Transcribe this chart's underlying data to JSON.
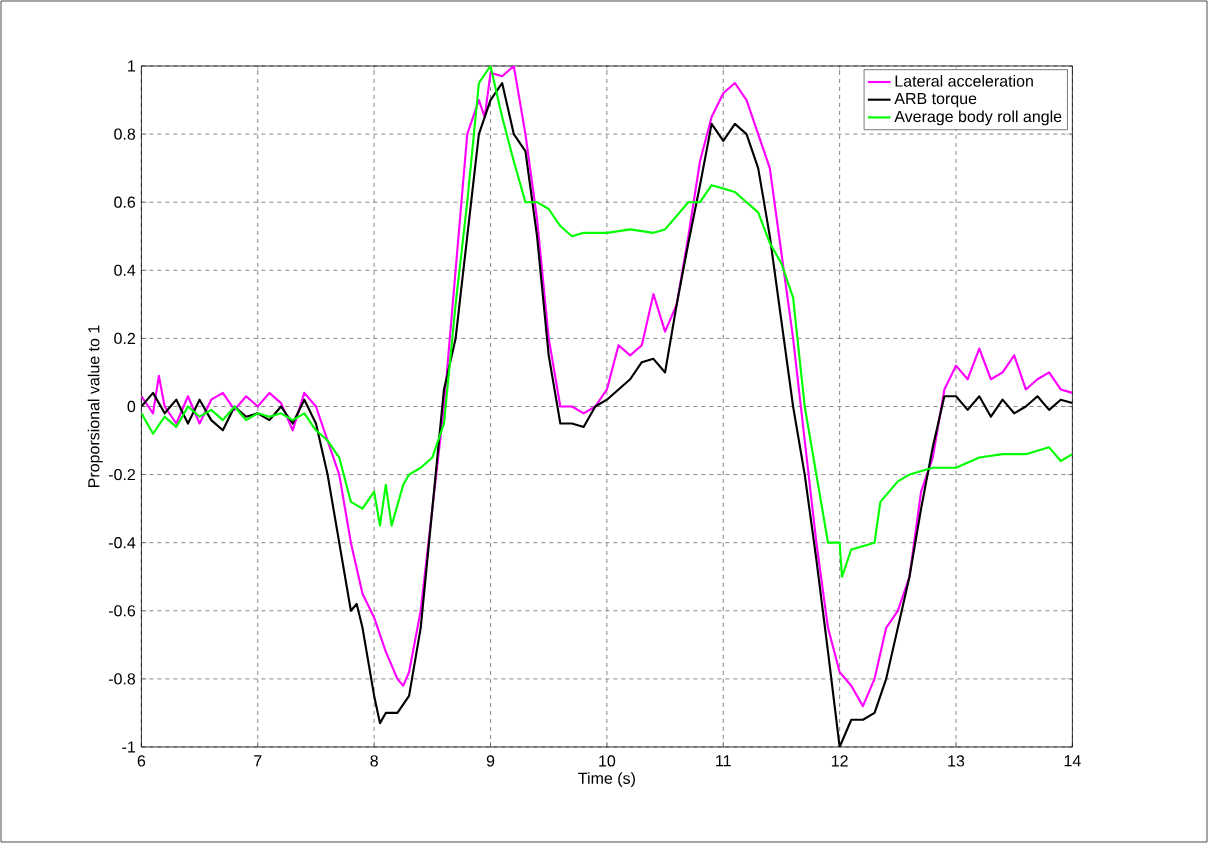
{
  "chart_data": {
    "type": "line",
    "xlabel": "Time (s)",
    "ylabel": "Proporsional value to 1",
    "xlim": [
      6,
      14
    ],
    "ylim": [
      -1,
      1
    ],
    "xticks": [
      6,
      7,
      8,
      9,
      10,
      11,
      12,
      13,
      14
    ],
    "yticks": [
      -1,
      -0.8,
      -0.6,
      -0.4,
      -0.2,
      0,
      0.2,
      0.4,
      0.6,
      0.8,
      1
    ],
    "grid": true,
    "legend": "top right",
    "line_style": "solid",
    "marker": "none",
    "series": [
      {
        "name": "Lateral acceleration",
        "color": "#ff00ff",
        "x": [
          6.0,
          6.1,
          6.15,
          6.2,
          6.3,
          6.4,
          6.5,
          6.6,
          6.7,
          6.8,
          6.9,
          7.0,
          7.1,
          7.2,
          7.3,
          7.4,
          7.5,
          7.6,
          7.7,
          7.8,
          7.9,
          8.0,
          8.1,
          8.2,
          8.25,
          8.3,
          8.4,
          8.5,
          8.6,
          8.7,
          8.8,
          8.9,
          8.95,
          9.0,
          9.1,
          9.2,
          9.3,
          9.4,
          9.5,
          9.6,
          9.7,
          9.8,
          9.9,
          10.0,
          10.1,
          10.2,
          10.3,
          10.4,
          10.5,
          10.6,
          10.7,
          10.8,
          10.9,
          11.0,
          11.1,
          11.2,
          11.3,
          11.4,
          11.5,
          11.6,
          11.7,
          11.8,
          11.9,
          12.0,
          12.1,
          12.2,
          12.3,
          12.4,
          12.5,
          12.6,
          12.7,
          12.8,
          12.9,
          13.0,
          13.1,
          13.2,
          13.3,
          13.4,
          13.5,
          13.6,
          13.7,
          13.8,
          13.9,
          14.0
        ],
        "values": [
          0.03,
          -0.02,
          0.09,
          0.0,
          -0.05,
          0.03,
          -0.05,
          0.02,
          0.04,
          -0.01,
          0.03,
          0.0,
          0.04,
          0.01,
          -0.07,
          0.04,
          0.0,
          -0.1,
          -0.2,
          -0.4,
          -0.55,
          -0.62,
          -0.72,
          -0.8,
          -0.82,
          -0.78,
          -0.6,
          -0.3,
          0.0,
          0.4,
          0.8,
          0.9,
          0.85,
          0.98,
          0.97,
          1.0,
          0.8,
          0.55,
          0.2,
          0.0,
          0.0,
          -0.02,
          0.0,
          0.05,
          0.18,
          0.15,
          0.18,
          0.33,
          0.22,
          0.3,
          0.5,
          0.72,
          0.85,
          0.92,
          0.95,
          0.9,
          0.8,
          0.7,
          0.45,
          0.2,
          -0.1,
          -0.4,
          -0.65,
          -0.78,
          -0.82,
          -0.88,
          -0.8,
          -0.65,
          -0.6,
          -0.5,
          -0.25,
          -0.15,
          0.05,
          0.12,
          0.08,
          0.17,
          0.08,
          0.1,
          0.15,
          0.05,
          0.08,
          0.1,
          0.05,
          0.04
        ]
      },
      {
        "name": "ARB torque",
        "color": "#000000",
        "x": [
          6.0,
          6.1,
          6.2,
          6.3,
          6.4,
          6.5,
          6.6,
          6.7,
          6.8,
          6.9,
          7.0,
          7.1,
          7.2,
          7.3,
          7.4,
          7.5,
          7.6,
          7.7,
          7.8,
          7.85,
          7.9,
          8.0,
          8.05,
          8.1,
          8.2,
          8.3,
          8.4,
          8.5,
          8.6,
          8.7,
          8.8,
          8.9,
          9.0,
          9.1,
          9.2,
          9.3,
          9.4,
          9.5,
          9.6,
          9.7,
          9.8,
          9.9,
          10.0,
          10.1,
          10.2,
          10.3,
          10.4,
          10.5,
          10.6,
          10.7,
          10.8,
          10.9,
          11.0,
          11.1,
          11.2,
          11.3,
          11.4,
          11.5,
          11.6,
          11.7,
          11.8,
          11.9,
          12.0,
          12.1,
          12.2,
          12.3,
          12.4,
          12.5,
          12.6,
          12.7,
          12.8,
          12.9,
          13.0,
          13.1,
          13.2,
          13.3,
          13.4,
          13.5,
          13.6,
          13.7,
          13.8,
          13.9,
          14.0
        ],
        "values": [
          0.0,
          0.04,
          -0.02,
          0.02,
          -0.05,
          0.02,
          -0.04,
          -0.07,
          0.0,
          -0.03,
          -0.02,
          -0.04,
          0.0,
          -0.05,
          0.02,
          -0.05,
          -0.2,
          -0.4,
          -0.6,
          -0.58,
          -0.65,
          -0.85,
          -0.93,
          -0.9,
          -0.9,
          -0.85,
          -0.65,
          -0.3,
          0.05,
          0.2,
          0.5,
          0.8,
          0.9,
          0.95,
          0.8,
          0.75,
          0.5,
          0.15,
          -0.05,
          -0.05,
          -0.06,
          0.0,
          0.02,
          0.05,
          0.08,
          0.13,
          0.14,
          0.1,
          0.3,
          0.48,
          0.65,
          0.83,
          0.78,
          0.83,
          0.8,
          0.7,
          0.5,
          0.25,
          0.0,
          -0.2,
          -0.45,
          -0.72,
          -1.0,
          -0.92,
          -0.92,
          -0.9,
          -0.8,
          -0.65,
          -0.5,
          -0.3,
          -0.12,
          0.03,
          0.03,
          -0.01,
          0.03,
          -0.03,
          0.02,
          -0.02,
          0.0,
          0.03,
          -0.01,
          0.02,
          0.01
        ]
      },
      {
        "name": "Average body roll angle",
        "color": "#00ff00",
        "x": [
          6.0,
          6.1,
          6.2,
          6.3,
          6.4,
          6.5,
          6.6,
          6.7,
          6.8,
          6.9,
          7.0,
          7.1,
          7.2,
          7.3,
          7.4,
          7.5,
          7.6,
          7.7,
          7.8,
          7.9,
          8.0,
          8.05,
          8.1,
          8.15,
          8.25,
          8.3,
          8.4,
          8.5,
          8.6,
          8.7,
          8.8,
          8.9,
          9.0,
          9.1,
          9.2,
          9.3,
          9.4,
          9.5,
          9.6,
          9.7,
          9.8,
          10.0,
          10.2,
          10.4,
          10.5,
          10.6,
          10.7,
          10.8,
          10.9,
          11.0,
          11.1,
          11.2,
          11.3,
          11.4,
          11.5,
          11.6,
          11.7,
          11.8,
          11.9,
          12.0,
          12.02,
          12.1,
          12.3,
          12.35,
          12.5,
          12.6,
          12.8,
          13.0,
          13.2,
          13.4,
          13.6,
          13.8,
          13.9,
          14.0
        ],
        "values": [
          -0.02,
          -0.08,
          -0.03,
          -0.06,
          0.0,
          -0.03,
          -0.01,
          -0.04,
          0.0,
          -0.04,
          -0.02,
          -0.03,
          -0.02,
          -0.04,
          -0.02,
          -0.07,
          -0.1,
          -0.15,
          -0.28,
          -0.3,
          -0.25,
          -0.35,
          -0.23,
          -0.35,
          -0.23,
          -0.2,
          -0.18,
          -0.15,
          -0.05,
          0.3,
          0.6,
          0.95,
          1.0,
          0.85,
          0.72,
          0.6,
          0.6,
          0.58,
          0.53,
          0.5,
          0.51,
          0.51,
          0.52,
          0.51,
          0.52,
          0.56,
          0.6,
          0.6,
          0.65,
          0.64,
          0.63,
          0.6,
          0.57,
          0.48,
          0.42,
          0.32,
          0.0,
          -0.2,
          -0.4,
          -0.4,
          -0.5,
          -0.42,
          -0.4,
          -0.28,
          -0.22,
          -0.2,
          -0.18,
          -0.18,
          -0.15,
          -0.14,
          -0.14,
          -0.12,
          -0.16,
          -0.14
        ]
      }
    ]
  }
}
